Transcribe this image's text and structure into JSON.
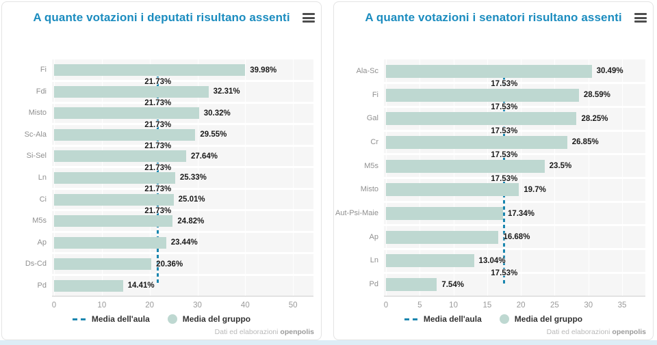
{
  "window": {
    "credit": {
      "prefix": "Dati ed elaborazioni",
      "brand": "openpolis"
    }
  },
  "legend": {
    "mean_label": "Media dell'aula",
    "group_label": "Media del gruppo"
  },
  "icons": {
    "menu": "hamburger-menu-icon",
    "mean_swatch": "dashed-line-icon",
    "group_swatch": "circle-marker-icon"
  },
  "colors": {
    "title_blue": "#1b8cbf",
    "bar_teal": "#bed8d1",
    "mean_line_blue": "#1a86af",
    "plot_background": "#f6f6f6"
  },
  "chart_data": [
    {
      "type": "bar",
      "orientation": "horizontal",
      "title": "A quante votazioni i deputati risultano assenti",
      "categories": [
        "Fi",
        "Fdi",
        "Misto",
        "Sc-Ala",
        "Si-Sel",
        "Ln",
        "Ci",
        "M5s",
        "Ap",
        "Ds-Cd",
        "Pd"
      ],
      "values": [
        39.98,
        32.31,
        30.32,
        29.55,
        27.64,
        25.33,
        25.01,
        24.82,
        23.44,
        20.36,
        14.41
      ],
      "value_labels": [
        "39.98%",
        "32.31%",
        "30.32%",
        "29.55%",
        "27.64%",
        "25.33%",
        "25.01%",
        "24.82%",
        "23.44%",
        "20.36%",
        "14.41%"
      ],
      "mean": {
        "name": "Media dell'aula",
        "value": 21.73,
        "label": "21.73%"
      },
      "mean_label_gaps": [
        0,
        1,
        2,
        3,
        4,
        5,
        6
      ],
      "xticks": [
        0,
        10,
        20,
        30,
        40,
        50
      ],
      "xlim": [
        0,
        54.7
      ],
      "xlabel": "",
      "ylabel": "",
      "grid": true,
      "legend_position": "bottom"
    },
    {
      "type": "bar",
      "orientation": "horizontal",
      "title": "A quante votazioni i senatori risultano assenti",
      "categories": [
        "Ala-Sc",
        "Fi",
        "Gal",
        "Cr",
        "M5s",
        "Misto",
        "Aut-Psi-Maie",
        "Ap",
        "Ln",
        "Pd"
      ],
      "values": [
        30.49,
        28.59,
        28.25,
        26.85,
        23.5,
        19.7,
        17.34,
        16.68,
        13.04,
        7.54
      ],
      "value_labels": [
        "30.49%",
        "28.59%",
        "28.25%",
        "26.85%",
        "23.5%",
        "19.7%",
        "17.34%",
        "16.68%",
        "13.04%",
        "7.54%"
      ],
      "mean": {
        "name": "Media dell'aula",
        "value": 17.53,
        "label": "17.53%"
      },
      "mean_label_gaps": [
        0,
        1,
        2,
        3,
        4,
        8
      ],
      "xticks": [
        0,
        5,
        10,
        15,
        20,
        25,
        30,
        35
      ],
      "xlim": [
        0,
        38.75
      ],
      "xlabel": "",
      "ylabel": "",
      "grid": true,
      "legend_position": "bottom"
    }
  ]
}
